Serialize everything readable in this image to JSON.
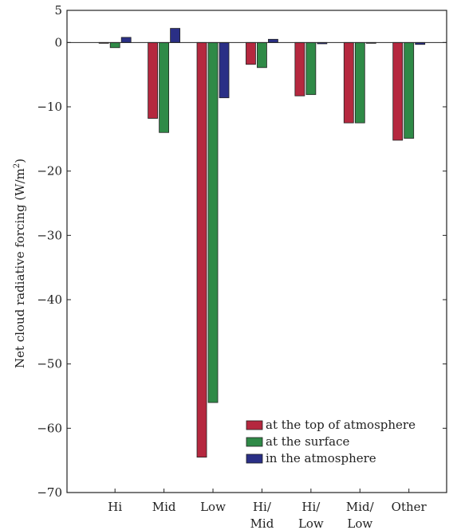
{
  "chart_data": {
    "type": "bar",
    "categories": [
      [
        "Hi"
      ],
      [
        "Mid"
      ],
      [
        "Low"
      ],
      [
        "Hi/",
        "Mid"
      ],
      [
        "Hi/",
        "Low"
      ],
      [
        "Mid/",
        "Low"
      ],
      [
        "Other"
      ]
    ],
    "series": [
      {
        "name": "at the top of atmosphere",
        "color": "#b5283f",
        "values": [
          -0.1,
          -11.8,
          -64.5,
          -3.4,
          -8.3,
          -12.5,
          -15.2
        ]
      },
      {
        "name": "at the surface",
        "color": "#2f8a47",
        "values": [
          -0.8,
          -14.0,
          -56.0,
          -3.9,
          -8.1,
          -12.5,
          -14.9
        ]
      },
      {
        "name": "in the atmosphere",
        "color": "#2a2f86",
        "values": [
          0.8,
          2.2,
          -8.6,
          0.5,
          -0.2,
          -0.1,
          -0.3
        ]
      }
    ],
    "ylabel_main": "Net cloud radiative forcing (W/m",
    "ylabel_sup": "2",
    "ylabel_close": ")",
    "xlabel": "",
    "ylim": [
      -70,
      5
    ],
    "yticks": [
      5,
      0,
      -10,
      -20,
      -30,
      -40,
      -50,
      -60,
      -70
    ],
    "ytick_labels": [
      "5",
      "0",
      "−10",
      "−20",
      "−30",
      "−40",
      "−50",
      "−60",
      "−70"
    ],
    "legend_position": "bottom-right",
    "grid": false
  }
}
